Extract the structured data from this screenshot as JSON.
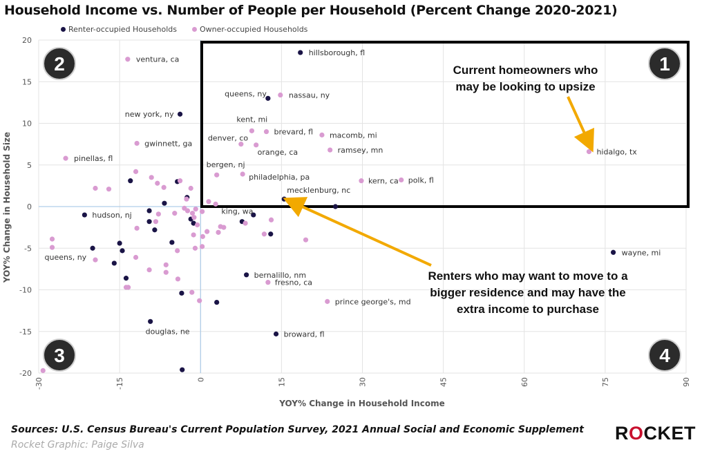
{
  "title": "Household Income vs. Number of People per Household (Percent Change 2020-2021)",
  "legend": {
    "renter": {
      "label": "Renter-occupied Households",
      "color": "#1a1446"
    },
    "owner": {
      "label": "Owner-occupied Households",
      "color": "#d99bd1"
    }
  },
  "annotations": {
    "homeowners": "Current homeowners who may be looking to upsize",
    "renters": "Renters who may want to move to a bigger residence and may have the extra income to purchase"
  },
  "quadrants": [
    "1",
    "2",
    "3",
    "4"
  ],
  "footer": {
    "source": "Sources: U.S. Census Bureau's Current Population Survey, 2021 Annual Social and Economic Supplement",
    "credit": "Rocket Graphic: Paige Silva"
  },
  "logo": {
    "pre": "R",
    "o": "O",
    "post": "CKET"
  },
  "chart_data": {
    "type": "scatter",
    "xlabel": "YOY% Change in Household Income",
    "ylabel": "YOY% Change in Household Size",
    "xlim": [
      -30,
      90
    ],
    "ylim": [
      -20,
      20
    ],
    "xticks": [
      -30,
      -15,
      0,
      15,
      30,
      45,
      60,
      75,
      90
    ],
    "yticks": [
      -20,
      -15,
      -10,
      -5,
      0,
      5,
      10,
      15,
      20
    ],
    "grid": true,
    "legend_position": "top-left",
    "series": [
      {
        "name": "Renter-occupied Households",
        "color": "#1a1446",
        "points": [
          {
            "x": 18.5,
            "y": 18.5,
            "label": "hillsborough, fl"
          },
          {
            "x": 12.5,
            "y": 13.0,
            "label": "queens, ny"
          },
          {
            "x": -3.8,
            "y": 11.1,
            "label": "new york, ny"
          },
          {
            "x": 15.5,
            "y": 0.9,
            "label": "mecklenburg, nc"
          },
          {
            "x": -21.5,
            "y": -1.0,
            "label": "hudson, nj"
          },
          {
            "x": 7.7,
            "y": -1.8,
            "label": "king, wa"
          },
          {
            "x": 8.5,
            "y": -8.2,
            "label": "bernalillo, nm"
          },
          {
            "x": -9.3,
            "y": -13.8,
            "label": "douglas, ne"
          },
          {
            "x": 14.0,
            "y": -15.3,
            "label": "broward, fl"
          },
          {
            "x": 76.5,
            "y": -5.5,
            "label": "wayne, mi"
          },
          {
            "x": -13,
            "y": 3.1,
            "label": ""
          },
          {
            "x": -4.3,
            "y": 3.0,
            "label": ""
          },
          {
            "x": -6.7,
            "y": 0.4,
            "label": ""
          },
          {
            "x": -2.5,
            "y": 1.1,
            "label": ""
          },
          {
            "x": -9.5,
            "y": -0.5,
            "label": ""
          },
          {
            "x": -9.5,
            "y": -1.8,
            "label": ""
          },
          {
            "x": -8.5,
            "y": -2.8,
            "label": ""
          },
          {
            "x": -1.8,
            "y": -1.5,
            "label": ""
          },
          {
            "x": -1.3,
            "y": -2.0,
            "label": ""
          },
          {
            "x": -5.3,
            "y": -4.3,
            "label": ""
          },
          {
            "x": -15,
            "y": -4.4,
            "label": ""
          },
          {
            "x": -14.5,
            "y": -5.3,
            "label": ""
          },
          {
            "x": -20,
            "y": -5.0,
            "label": ""
          },
          {
            "x": -16,
            "y": -6.8,
            "label": ""
          },
          {
            "x": -13.8,
            "y": -8.6,
            "label": ""
          },
          {
            "x": -3.5,
            "y": -10.4,
            "label": ""
          },
          {
            "x": 3.0,
            "y": -11.5,
            "label": ""
          },
          {
            "x": 9.8,
            "y": -1.0,
            "label": ""
          },
          {
            "x": 13.0,
            "y": -3.3,
            "label": ""
          },
          {
            "x": 25.0,
            "y": 0.0,
            "label": ""
          },
          {
            "x": -3.4,
            "y": -19.6,
            "label": ""
          }
        ]
      },
      {
        "name": "Owner-occupied Households",
        "color": "#d99bd1",
        "points": [
          {
            "x": -13.5,
            "y": 17.7,
            "label": "ventura, ca"
          },
          {
            "x": 14.8,
            "y": 13.4,
            "label": "nassau, ny"
          },
          {
            "x": 9.5,
            "y": 9.1,
            "label": "kent, mi"
          },
          {
            "x": 12.2,
            "y": 9.0,
            "label": "brevard, fl"
          },
          {
            "x": 22.5,
            "y": 8.6,
            "label": "macomb, mi"
          },
          {
            "x": 7.5,
            "y": 7.5,
            "label": "denver, co"
          },
          {
            "x": 10.3,
            "y": 7.4,
            "label": "orange, ca"
          },
          {
            "x": 24.0,
            "y": 6.8,
            "label": "ramsey, mn"
          },
          {
            "x": 72.0,
            "y": 6.6,
            "label": "hidalgo, tx"
          },
          {
            "x": -11.8,
            "y": 7.6,
            "label": "gwinnett, ga"
          },
          {
            "x": -25,
            "y": 5.8,
            "label": "pinellas, fl"
          },
          {
            "x": 3.0,
            "y": 3.8,
            "label": "bergen, nj"
          },
          {
            "x": 7.8,
            "y": 3.9,
            "label": "philadelphia, pa"
          },
          {
            "x": 29.8,
            "y": 3.1,
            "label": "kern, ca"
          },
          {
            "x": 37.2,
            "y": 3.2,
            "label": "polk, fl"
          },
          {
            "x": 23.5,
            "y": -11.4,
            "label": "prince george's, md"
          },
          {
            "x": 12.5,
            "y": -9.1,
            "label": "fresno, ca"
          },
          {
            "x": -27.5,
            "y": -4.9,
            "label": "queens, ny"
          },
          {
            "x": -27.5,
            "y": -3.9,
            "label": ""
          },
          {
            "x": -19.5,
            "y": 2.2,
            "label": ""
          },
          {
            "x": -17,
            "y": 2.1,
            "label": ""
          },
          {
            "x": -12,
            "y": 4.2,
            "label": ""
          },
          {
            "x": -9.1,
            "y": 3.5,
            "label": ""
          },
          {
            "x": -8,
            "y": 2.8,
            "label": ""
          },
          {
            "x": -6.8,
            "y": 2.3,
            "label": ""
          },
          {
            "x": -3.8,
            "y": 3.1,
            "label": ""
          },
          {
            "x": -1.8,
            "y": 2.2,
            "label": ""
          },
          {
            "x": -2.6,
            "y": 0.9,
            "label": ""
          },
          {
            "x": -3,
            "y": -0.2,
            "label": ""
          },
          {
            "x": -2.4,
            "y": -0.5,
            "label": ""
          },
          {
            "x": -0.9,
            "y": -0.3,
            "label": ""
          },
          {
            "x": -1.5,
            "y": -0.8,
            "label": ""
          },
          {
            "x": -1.2,
            "y": -1.3,
            "label": ""
          },
          {
            "x": -0.6,
            "y": -2.2,
            "label": ""
          },
          {
            "x": -4.8,
            "y": -0.8,
            "label": ""
          },
          {
            "x": -7.8,
            "y": -0.9,
            "label": ""
          },
          {
            "x": -8.3,
            "y": -1.8,
            "label": ""
          },
          {
            "x": -11.8,
            "y": -2.6,
            "label": ""
          },
          {
            "x": 1.5,
            "y": 0.6,
            "label": ""
          },
          {
            "x": 2.8,
            "y": 0.3,
            "label": ""
          },
          {
            "x": 0.3,
            "y": -0.6,
            "label": ""
          },
          {
            "x": 1.2,
            "y": -3.0,
            "label": ""
          },
          {
            "x": 0.4,
            "y": -3.6,
            "label": ""
          },
          {
            "x": -1.3,
            "y": -3.4,
            "label": ""
          },
          {
            "x": 3.7,
            "y": -2.4,
            "label": ""
          },
          {
            "x": 4.3,
            "y": -2.5,
            "label": ""
          },
          {
            "x": 3.3,
            "y": -3.1,
            "label": ""
          },
          {
            "x": 8.3,
            "y": -2.0,
            "label": ""
          },
          {
            "x": 11.8,
            "y": -3.3,
            "label": ""
          },
          {
            "x": 13.1,
            "y": -1.6,
            "label": ""
          },
          {
            "x": 19.5,
            "y": -4.0,
            "label": ""
          },
          {
            "x": 0.3,
            "y": -4.8,
            "label": ""
          },
          {
            "x": -1.0,
            "y": -5.0,
            "label": ""
          },
          {
            "x": -4.3,
            "y": -5.3,
            "label": ""
          },
          {
            "x": -12,
            "y": -6.1,
            "label": ""
          },
          {
            "x": -6.4,
            "y": -7.0,
            "label": ""
          },
          {
            "x": -6.4,
            "y": -7.9,
            "label": ""
          },
          {
            "x": -9.5,
            "y": -7.6,
            "label": ""
          },
          {
            "x": -4.2,
            "y": -8.7,
            "label": ""
          },
          {
            "x": -19.5,
            "y": -6.4,
            "label": ""
          },
          {
            "x": -13.8,
            "y": -9.7,
            "label": ""
          },
          {
            "x": -13.4,
            "y": -9.7,
            "label": ""
          },
          {
            "x": -1.6,
            "y": -10.3,
            "label": ""
          },
          {
            "x": -0.2,
            "y": -11.3,
            "label": ""
          },
          {
            "x": -29.2,
            "y": -19.7,
            "label": ""
          }
        ]
      }
    ]
  }
}
